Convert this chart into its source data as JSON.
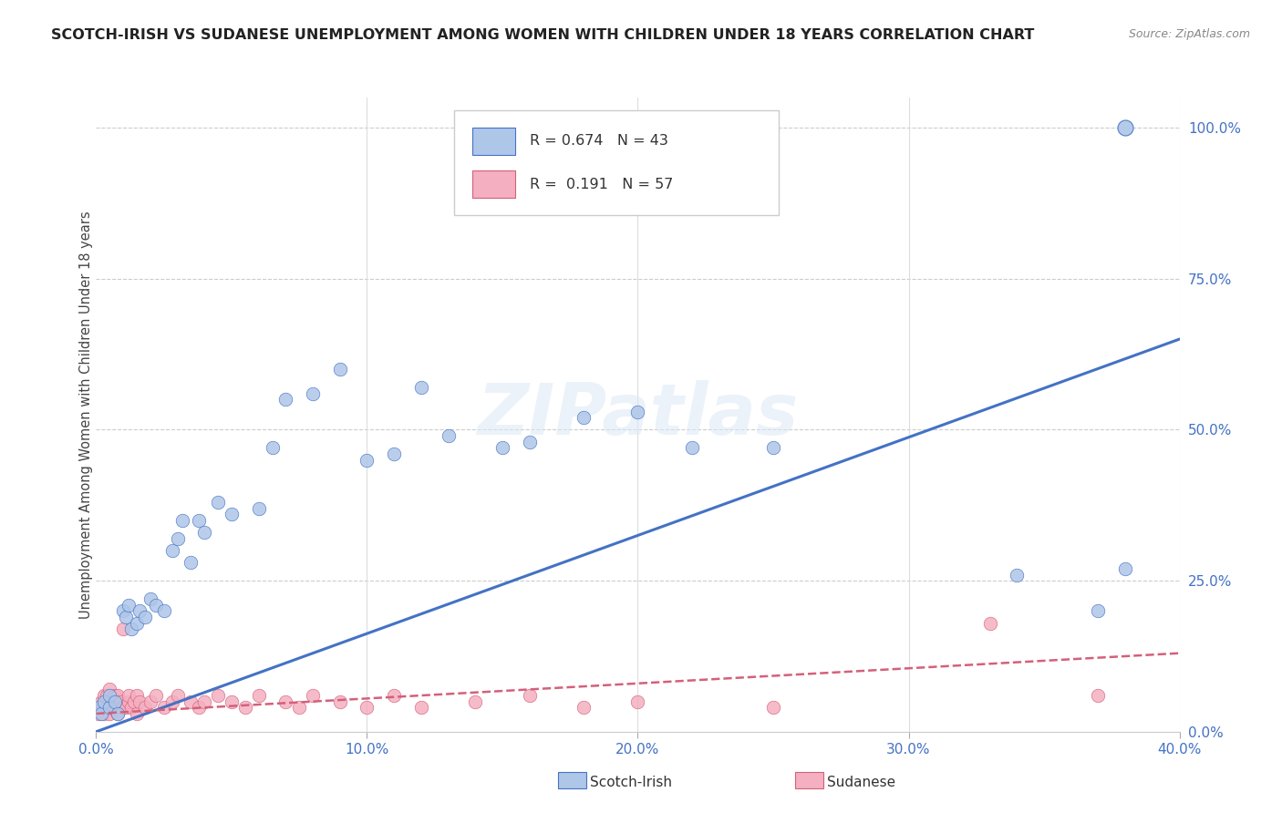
{
  "title": "SCOTCH-IRISH VS SUDANESE UNEMPLOYMENT AMONG WOMEN WITH CHILDREN UNDER 18 YEARS CORRELATION CHART",
  "source": "Source: ZipAtlas.com",
  "ylabel": "Unemployment Among Women with Children Under 18 years",
  "scotch_irish_R": 0.674,
  "scotch_irish_N": 43,
  "sudanese_R": 0.191,
  "sudanese_N": 57,
  "scotch_irish_color": "#aec6e8",
  "scotch_irish_line_color": "#4472c4",
  "sudanese_color": "#f4afc0",
  "sudanese_line_color": "#d4607a",
  "background_color": "#ffffff",
  "watermark": "ZIPatlas",
  "xmin": 0.0,
  "xmax": 0.4,
  "ymin": 0.0,
  "ymax": 1.05,
  "x_tick_vals": [
    0.0,
    0.1,
    0.2,
    0.3,
    0.4
  ],
  "x_tick_labels": [
    "0.0%",
    "10.0%",
    "20.0%",
    "30.0%",
    "40.0%"
  ],
  "y_tick_vals": [
    0.0,
    0.25,
    0.5,
    0.75,
    1.0
  ],
  "y_tick_labels": [
    "0.0%",
    "25.0%",
    "50.0%",
    "75.0%",
    "100.0%"
  ],
  "si_trend_x": [
    0.0,
    0.4
  ],
  "si_trend_y": [
    0.0,
    0.65
  ],
  "su_trend_x": [
    0.0,
    0.4
  ],
  "su_trend_y": [
    0.03,
    0.13
  ],
  "si_x": [
    0.001,
    0.002,
    0.003,
    0.005,
    0.005,
    0.007,
    0.008,
    0.01,
    0.011,
    0.012,
    0.013,
    0.015,
    0.016,
    0.018,
    0.02,
    0.022,
    0.025,
    0.028,
    0.03,
    0.032,
    0.035,
    0.038,
    0.04,
    0.045,
    0.05,
    0.06,
    0.065,
    0.07,
    0.08,
    0.09,
    0.1,
    0.11,
    0.12,
    0.13,
    0.15,
    0.16,
    0.18,
    0.2,
    0.22,
    0.25,
    0.34,
    0.37,
    0.38
  ],
  "si_y": [
    0.04,
    0.03,
    0.05,
    0.04,
    0.06,
    0.05,
    0.03,
    0.2,
    0.19,
    0.21,
    0.17,
    0.18,
    0.2,
    0.19,
    0.22,
    0.21,
    0.2,
    0.3,
    0.32,
    0.35,
    0.28,
    0.35,
    0.33,
    0.38,
    0.36,
    0.37,
    0.47,
    0.55,
    0.56,
    0.6,
    0.45,
    0.46,
    0.57,
    0.49,
    0.47,
    0.48,
    0.52,
    0.53,
    0.47,
    0.47,
    0.26,
    0.2,
    0.27
  ],
  "su_x": [
    0.001,
    0.002,
    0.002,
    0.003,
    0.003,
    0.004,
    0.004,
    0.004,
    0.005,
    0.005,
    0.005,
    0.006,
    0.006,
    0.007,
    0.007,
    0.008,
    0.008,
    0.008,
    0.009,
    0.009,
    0.01,
    0.01,
    0.011,
    0.012,
    0.012,
    0.013,
    0.014,
    0.015,
    0.015,
    0.016,
    0.018,
    0.02,
    0.022,
    0.025,
    0.028,
    0.03,
    0.035,
    0.038,
    0.04,
    0.045,
    0.05,
    0.055,
    0.06,
    0.07,
    0.075,
    0.08,
    0.09,
    0.1,
    0.11,
    0.12,
    0.14,
    0.16,
    0.18,
    0.2,
    0.25,
    0.33,
    0.37
  ],
  "su_y": [
    0.03,
    0.04,
    0.05,
    0.03,
    0.06,
    0.04,
    0.05,
    0.06,
    0.03,
    0.04,
    0.07,
    0.04,
    0.05,
    0.04,
    0.06,
    0.03,
    0.05,
    0.06,
    0.04,
    0.05,
    0.04,
    0.17,
    0.04,
    0.05,
    0.06,
    0.04,
    0.05,
    0.03,
    0.06,
    0.05,
    0.04,
    0.05,
    0.06,
    0.04,
    0.05,
    0.06,
    0.05,
    0.04,
    0.05,
    0.06,
    0.05,
    0.04,
    0.06,
    0.05,
    0.04,
    0.06,
    0.05,
    0.04,
    0.06,
    0.04,
    0.05,
    0.06,
    0.04,
    0.05,
    0.04,
    0.18,
    0.06
  ],
  "si_outlier_x": [
    0.38
  ],
  "si_outlier_y": [
    1.0
  ]
}
